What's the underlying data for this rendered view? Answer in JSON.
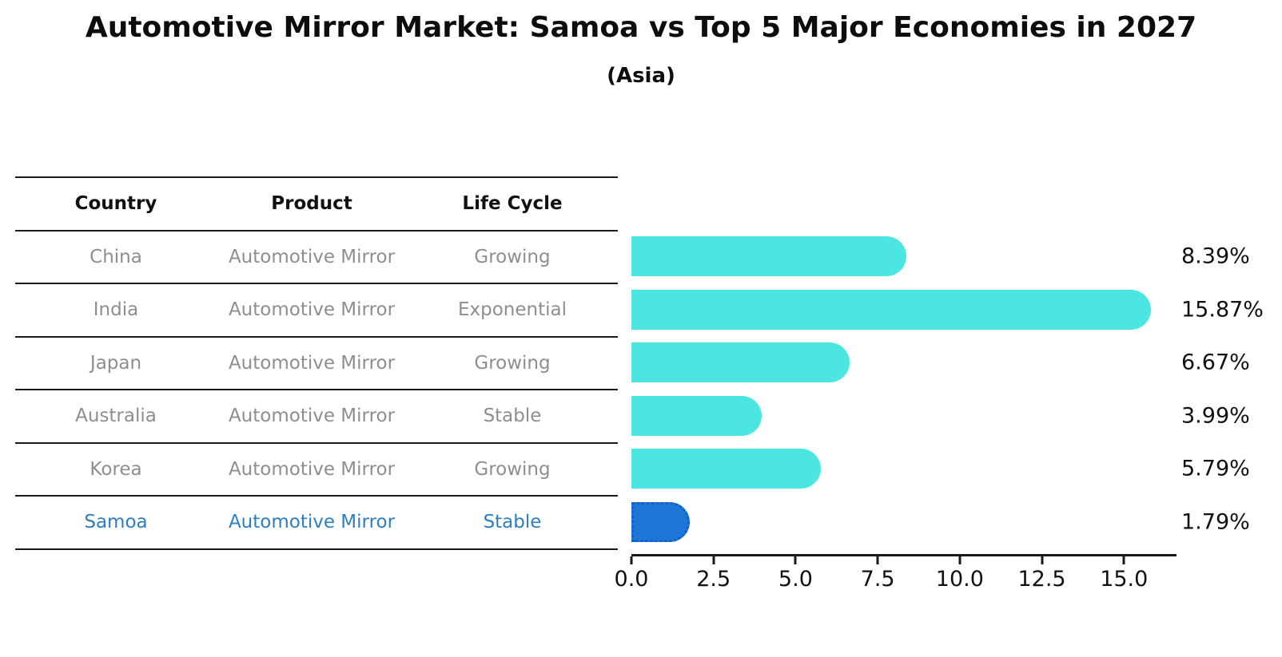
{
  "title": "Automotive Mirror Market: Samoa vs Top 5 Major Economies in 2027",
  "subtitle": "(Asia)",
  "table": {
    "headers": [
      "Country",
      "Product",
      "Life Cycle"
    ],
    "rows": [
      {
        "country": "China",
        "product": "Automotive Mirror",
        "life_cycle": "Growing",
        "highlight": false
      },
      {
        "country": "India",
        "product": "Automotive Mirror",
        "life_cycle": "Exponential",
        "highlight": false
      },
      {
        "country": "Japan",
        "product": "Automotive Mirror",
        "life_cycle": "Growing",
        "highlight": false
      },
      {
        "country": "Australia",
        "product": "Automotive Mirror",
        "life_cycle": "Stable",
        "highlight": false
      },
      {
        "country": "Korea",
        "product": "Automotive Mirror",
        "life_cycle": "Growing",
        "highlight": false
      },
      {
        "country": "Samoa",
        "product": "Automotive Mirror",
        "life_cycle": "Stable",
        "highlight": true
      }
    ]
  },
  "chart_data": {
    "type": "bar",
    "orientation": "horizontal",
    "categories": [
      "China",
      "India",
      "Japan",
      "Australia",
      "Korea",
      "Samoa"
    ],
    "values": [
      8.39,
      15.87,
      6.67,
      3.99,
      5.79,
      1.79
    ],
    "value_labels": [
      "8.39%",
      "15.87%",
      "6.67%",
      "3.99%",
      "5.79%",
      "1.79%"
    ],
    "title": "Automotive Mirror Market: Samoa vs Top 5 Major Economies in 2027",
    "subtitle": "(Asia)",
    "xlabel": "",
    "ylabel": "",
    "xlim": [
      0,
      16.6
    ],
    "xticks": [
      0.0,
      2.5,
      5.0,
      7.5,
      10.0,
      12.5,
      15.0
    ],
    "xtick_labels": [
      "0.0",
      "2.5",
      "5.0",
      "7.5",
      "10.0",
      "12.5",
      "15.0"
    ],
    "grid": false,
    "legend": false,
    "highlight_index": 5
  },
  "colors": {
    "bar_color": "#4BE6E2",
    "highlight_color": "#1E77D6",
    "highlight_border": "#0E5FCC",
    "table_line": "#1a1a1a",
    "row_text": "#8E8E8E",
    "highlight_text": "#2E7EC0",
    "header_text": "#111111",
    "axis_text": "#111111"
  }
}
